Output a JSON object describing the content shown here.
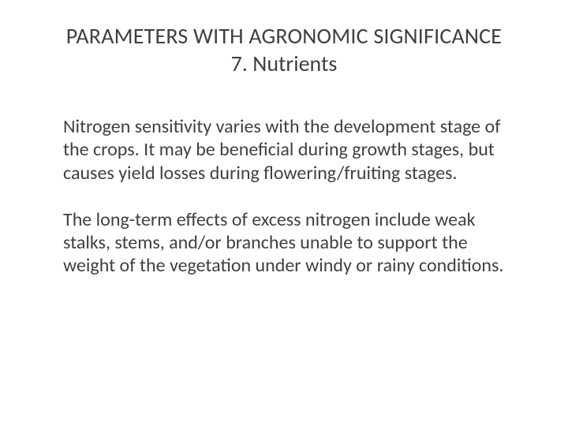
{
  "slide": {
    "title_line1": "PARAMETERS WITH AGRONOMIC SIGNIFICANCE",
    "title_line2": "7. Nutrients",
    "paragraph1": "Nitrogen sensitivity varies with the development stage of the crops. It may be beneficial during growth stages, but causes yield losses during flowering/fruiting stages.",
    "paragraph2": "The long-term effects of excess nitrogen include weak stalks, stems, and/or branches unable to support the weight of the vegetation under windy or rainy conditions."
  },
  "style": {
    "background_color": "#ffffff",
    "text_color": "#404040",
    "title_fontsize": 28,
    "body_fontsize": 24,
    "font_family": "Calibri"
  }
}
